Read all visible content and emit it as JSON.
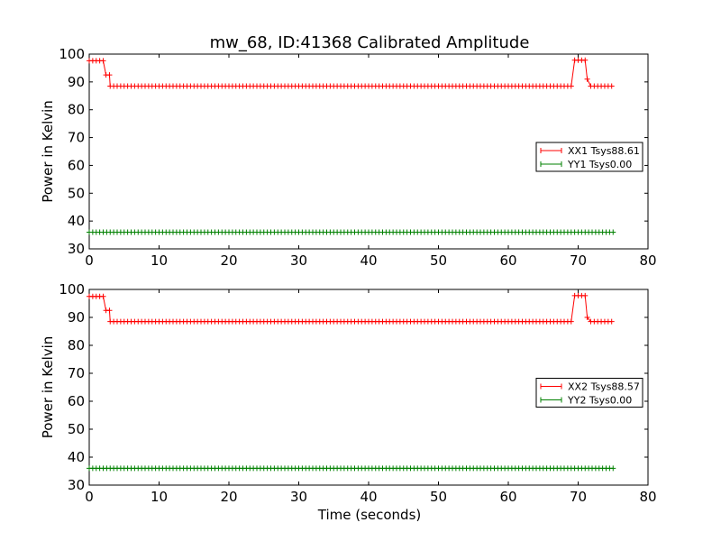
{
  "chart_data": [
    {
      "type": "line",
      "title": "mw_68, ID:41368 Calibrated Amplitude",
      "xlabel": "",
      "ylabel": "Power in Kelvin",
      "xlim": [
        0,
        80
      ],
      "ylim": [
        30,
        100
      ],
      "xticks": [
        "0",
        "10",
        "20",
        "30",
        "40",
        "50",
        "60",
        "70",
        "80"
      ],
      "yticks": [
        "30",
        "40",
        "50",
        "60",
        "70",
        "80",
        "90",
        "100"
      ],
      "marker": "+",
      "legend": "center-right",
      "grid": false,
      "series": [
        {
          "name": "XX1 Tsys88.61",
          "color": "#ff0000",
          "segments": [
            {
              "x0": 0,
              "x1": 2.4,
              "y": 97.6
            },
            {
              "x0": 2.4,
              "x1": 2.9,
              "y": 92.5
            },
            {
              "x0": 3.0,
              "x1": 69.2,
              "y": 88.5
            },
            {
              "x0": 69.5,
              "x1": 71.0,
              "y": 97.8
            },
            {
              "x0": 71.3,
              "x1": 71.6,
              "y": 91.0
            },
            {
              "x0": 71.8,
              "x1": 75.0,
              "y": 88.5
            }
          ]
        },
        {
          "name": "YY1 Tsys0.00",
          "color": "#008000",
          "segments": [
            {
              "x0": 0,
              "x1": 75.0,
              "y": 36.0
            }
          ]
        }
      ]
    },
    {
      "type": "line",
      "title": "",
      "xlabel": "Time (seconds)",
      "ylabel": "Power in Kelvin",
      "xlim": [
        0,
        80
      ],
      "ylim": [
        30,
        100
      ],
      "xticks": [
        "0",
        "10",
        "20",
        "30",
        "40",
        "50",
        "60",
        "70",
        "80"
      ],
      "yticks": [
        "30",
        "40",
        "50",
        "60",
        "70",
        "80",
        "90",
        "100"
      ],
      "marker": "+",
      "legend": "center-right",
      "grid": false,
      "series": [
        {
          "name": "XX2 Tsys88.57",
          "color": "#ff0000",
          "segments": [
            {
              "x0": 0,
              "x1": 2.4,
              "y": 97.5
            },
            {
              "x0": 2.4,
              "x1": 2.9,
              "y": 92.5
            },
            {
              "x0": 3.0,
              "x1": 69.2,
              "y": 88.5
            },
            {
              "x0": 69.5,
              "x1": 71.0,
              "y": 97.8
            },
            {
              "x0": 71.3,
              "x1": 71.6,
              "y": 90.0
            },
            {
              "x0": 71.8,
              "x1": 75.0,
              "y": 88.5
            }
          ]
        },
        {
          "name": "YY2 Tsys0.00",
          "color": "#008000",
          "segments": [
            {
              "x0": 0,
              "x1": 75.0,
              "y": 36.0
            }
          ]
        }
      ]
    }
  ]
}
